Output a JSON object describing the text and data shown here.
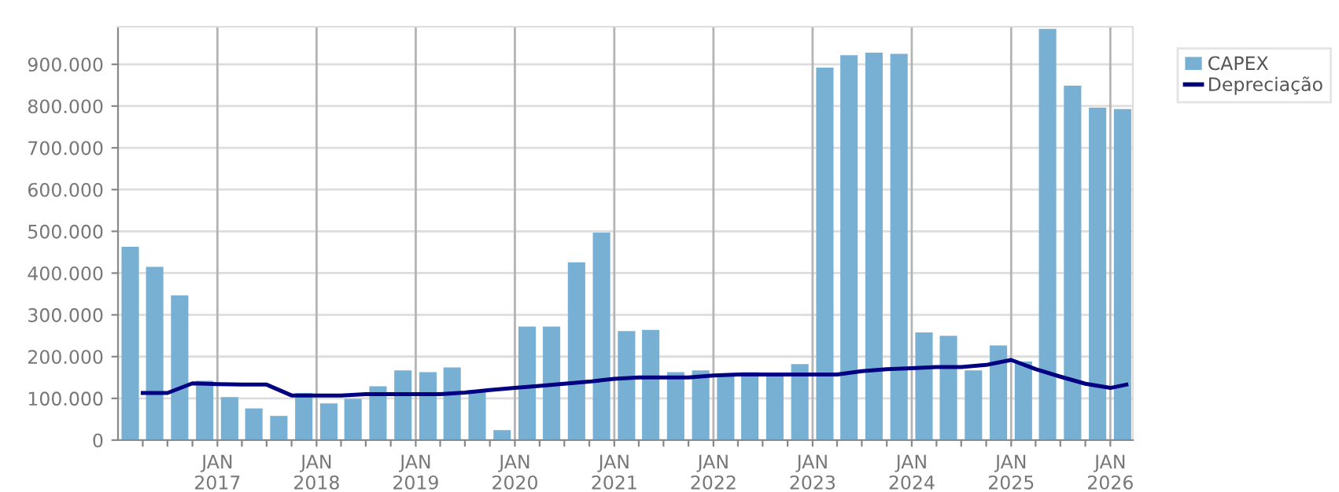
{
  "chart_data": {
    "type": "bar",
    "x": [
      "2016-02-15",
      "2016-05-15",
      "2016-08-15",
      "2016-11-15",
      "2017-02-15",
      "2017-05-15",
      "2017-08-15",
      "2017-11-15",
      "2018-02-15",
      "2018-05-15",
      "2018-08-15",
      "2018-11-15",
      "2019-02-15",
      "2019-05-15",
      "2019-08-15",
      "2019-11-15",
      "2020-02-15",
      "2020-05-15",
      "2020-08-15",
      "2020-11-15",
      "2021-02-15",
      "2021-05-15",
      "2021-08-15",
      "2021-11-15",
      "2022-02-15",
      "2022-05-15",
      "2022-08-15",
      "2022-11-15",
      "2023-02-15",
      "2023-05-15",
      "2023-08-15",
      "2023-11-15",
      "2024-02-15",
      "2024-05-15",
      "2024-08-15",
      "2024-11-15",
      "2025-02-15",
      "2025-05-15",
      "2025-08-15",
      "2025-11-15",
      "2026-02-15"
    ],
    "series": [
      {
        "name": "CAPEX",
        "color": "#78b0d3",
        "values": [
          463000,
          415000,
          347000,
          142000,
          103000,
          76000,
          58000,
          113000,
          88000,
          99000,
          129000,
          167000,
          163000,
          174000,
          120000,
          24000,
          272000,
          272000,
          426000,
          497000,
          261000,
          264000,
          163000,
          167000,
          157000,
          163000,
          157000,
          182000,
          892000,
          922000,
          928000,
          925000,
          258000,
          250000,
          167000,
          227000,
          188000,
          985000,
          849000,
          796000,
          793000
        ]
      },
      {
        "name": "Depreciação",
        "type": "line",
        "color": "#000080",
        "line_style": "solid",
        "marker": "none",
        "x": [
          "2016-04",
          "2016-07",
          "2016-10",
          "2017-01",
          "2017-04",
          "2017-07",
          "2017-10",
          "2018-01",
          "2018-04",
          "2018-07",
          "2018-10",
          "2019-01",
          "2019-04",
          "2019-07",
          "2019-10",
          "2020-01",
          "2020-04",
          "2020-07",
          "2020-10",
          "2021-01",
          "2021-04",
          "2021-07",
          "2021-10",
          "2022-01",
          "2022-04",
          "2022-07",
          "2022-10",
          "2023-01",
          "2023-04",
          "2023-07",
          "2023-10",
          "2024-01",
          "2024-04",
          "2024-07",
          "2024-10",
          "2025-01",
          "2025-04",
          "2025-07",
          "2025-10",
          "2026-01",
          "2026-03"
        ],
        "values": [
          113000,
          113000,
          136000,
          134000,
          133000,
          133000,
          107000,
          107000,
          107000,
          110000,
          110000,
          110000,
          110000,
          114000,
          120000,
          125000,
          130000,
          135000,
          140000,
          147000,
          150000,
          150000,
          150000,
          155000,
          157000,
          157000,
          157000,
          157000,
          157000,
          165000,
          170000,
          172000,
          175000,
          175000,
          180000,
          192000,
          170000,
          152000,
          135000,
          125000,
          133000
        ]
      }
    ],
    "xlim": [
      "2016-01",
      "2026-03-25"
    ],
    "xticks": [
      {
        "value": "2016-04",
        "label": null
      },
      {
        "value": "2016-07",
        "label": null
      },
      {
        "value": "2016-10",
        "label": null
      },
      {
        "value": "2017-01",
        "label": "JAN\n2017"
      },
      {
        "value": "2017-04",
        "label": null
      },
      {
        "value": "2017-07",
        "label": null
      },
      {
        "value": "2017-10",
        "label": null
      },
      {
        "value": "2018-01",
        "label": "JAN\n2018"
      },
      {
        "value": "2018-04",
        "label": null
      },
      {
        "value": "2018-07",
        "label": null
      },
      {
        "value": "2018-10",
        "label": null
      },
      {
        "value": "2019-01",
        "label": "JAN\n2019"
      },
      {
        "value": "2019-04",
        "label": null
      },
      {
        "value": "2019-07",
        "label": null
      },
      {
        "value": "2019-10",
        "label": null
      },
      {
        "value": "2020-01",
        "label": "JAN\n2020"
      },
      {
        "value": "2020-04",
        "label": null
      },
      {
        "value": "2020-07",
        "label": null
      },
      {
        "value": "2020-10",
        "label": null
      },
      {
        "value": "2021-01",
        "label": "JAN\n2021"
      },
      {
        "value": "2021-04",
        "label": null
      },
      {
        "value": "2021-07",
        "label": null
      },
      {
        "value": "2021-10",
        "label": null
      },
      {
        "value": "2022-01",
        "label": "JAN\n2022"
      },
      {
        "value": "2022-04",
        "label": null
      },
      {
        "value": "2022-07",
        "label": null
      },
      {
        "value": "2022-10",
        "label": null
      },
      {
        "value": "2023-01",
        "label": "JAN\n2023"
      },
      {
        "value": "2023-04",
        "label": null
      },
      {
        "value": "2023-07",
        "label": null
      },
      {
        "value": "2023-10",
        "label": null
      },
      {
        "value": "2024-01",
        "label": "JAN\n2024"
      },
      {
        "value": "2024-04",
        "label": null
      },
      {
        "value": "2024-07",
        "label": null
      },
      {
        "value": "2024-10",
        "label": null
      },
      {
        "value": "2025-01",
        "label": "JAN\n2025"
      },
      {
        "value": "2025-04",
        "label": null
      },
      {
        "value": "2025-07",
        "label": null
      },
      {
        "value": "2025-10",
        "label": null
      },
      {
        "value": "2026-01",
        "label": "JAN\n2026"
      }
    ],
    "ylim": [
      0,
      990000
    ],
    "yticks": [
      0,
      {
        "value": 100000,
        "label": "100.000"
      },
      {
        "value": 200000,
        "label": "200.000"
      },
      {
        "value": 300000,
        "label": "300.000"
      },
      {
        "value": 400000,
        "label": "400.000"
      },
      {
        "value": 500000,
        "label": "500.000"
      },
      {
        "value": 600000,
        "label": "600.000"
      },
      {
        "value": 700000,
        "label": "700.000"
      },
      {
        "value": 800000,
        "label": "800.000"
      },
      {
        "value": 900000,
        "label": "900.000"
      }
    ],
    "grid": true,
    "legend": "top right"
  }
}
